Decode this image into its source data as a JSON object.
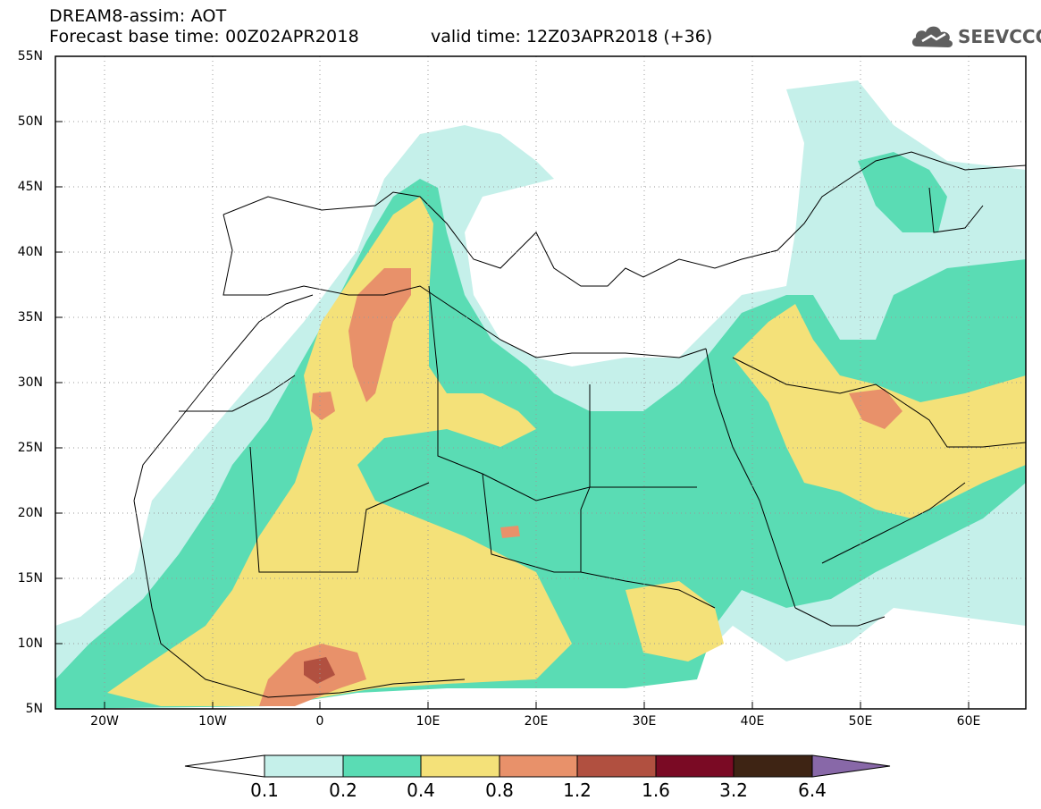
{
  "title_line1": "DREAM8-assim: AOT",
  "title_line2": "Forecast base time: 00Z02APR2018",
  "valid_time": "valid time: 12Z03APR2018 (+36)",
  "logo_text": "SEEVCCC",
  "lat_labels": [
    "55N",
    "50N",
    "45N",
    "40N",
    "35N",
    "30N",
    "25N",
    "20N",
    "15N",
    "10N",
    "5N"
  ],
  "lon_labels": [
    "20W",
    "10W",
    "0",
    "10E",
    "20E",
    "30E",
    "40E",
    "50E",
    "60E"
  ],
  "colorbar": {
    "levels": [
      "0.1",
      "0.2",
      "0.4",
      "0.8",
      "1.2",
      "1.6",
      "3.2",
      "6.4"
    ],
    "colors": [
      "#ffffff",
      "#c5f0ea",
      "#5adcb4",
      "#f4e179",
      "#e8916a",
      "#b15040",
      "#7a0a24",
      "#3e2414",
      "#8868a8"
    ]
  }
}
